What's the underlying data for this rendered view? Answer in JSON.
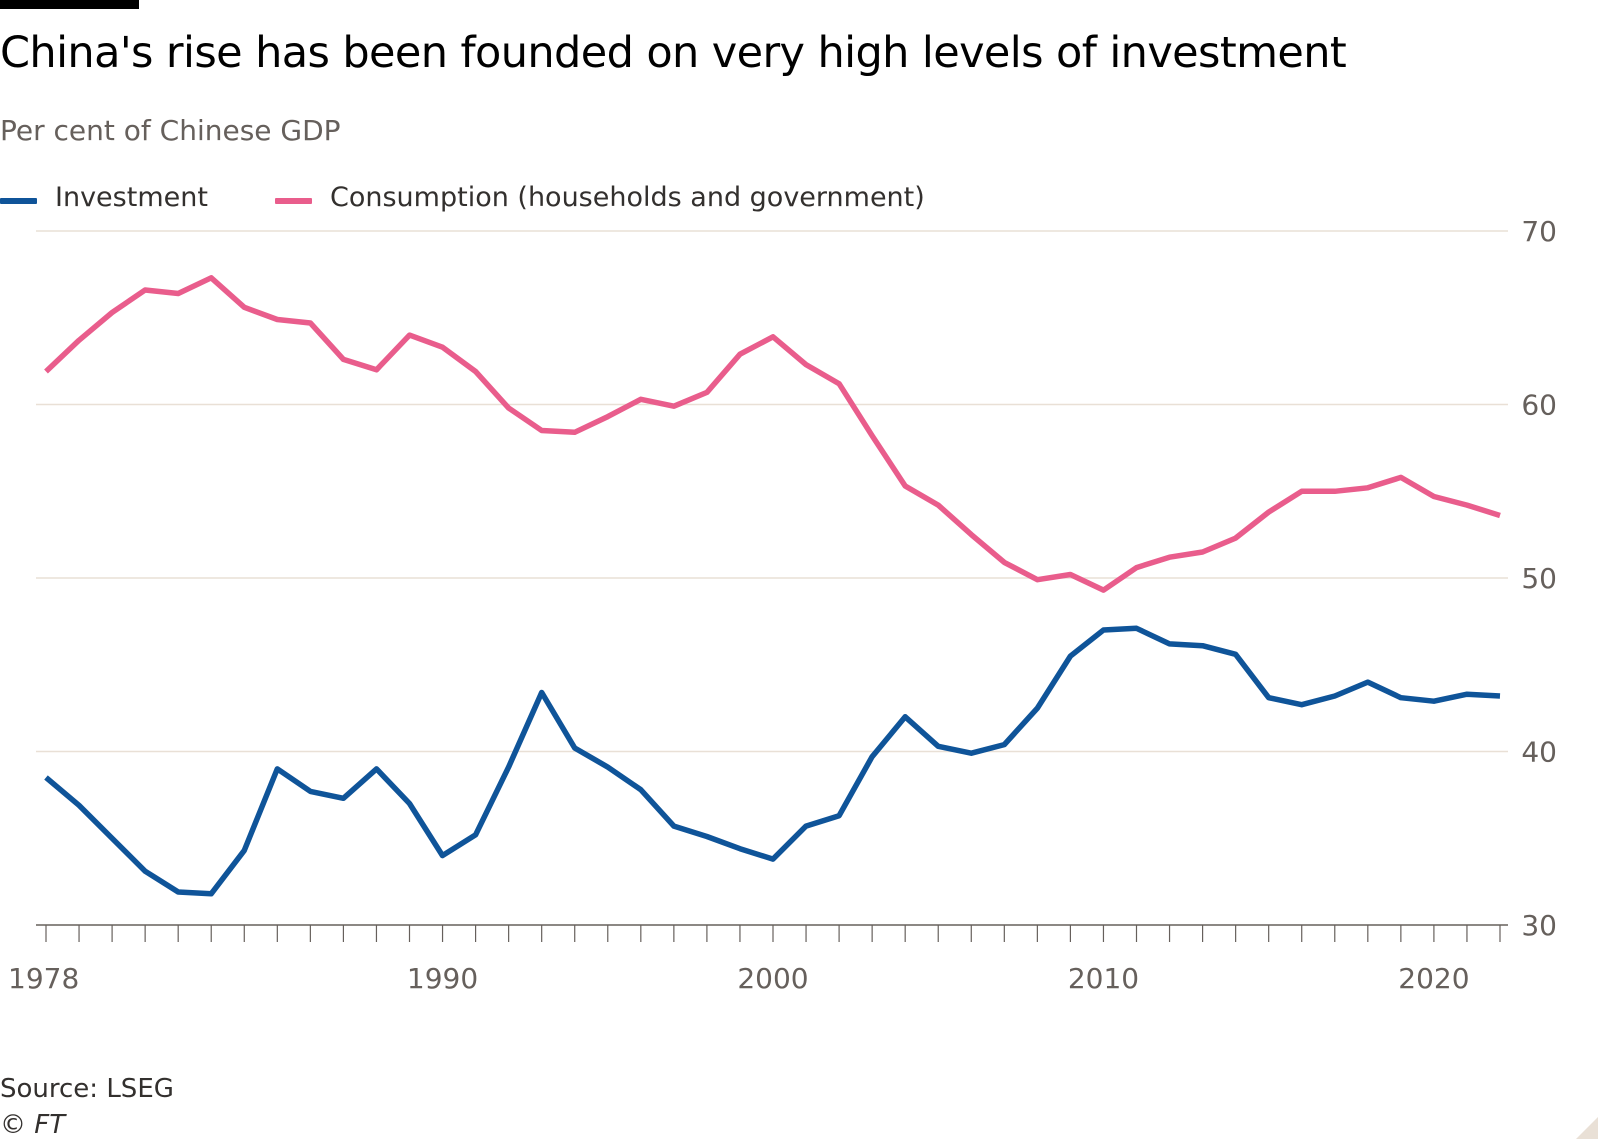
{
  "title": "China's rise has been founded on very high levels of investment",
  "subtitle": "Per cent of Chinese GDP",
  "source": "Source: LSEG",
  "credit": "© FT",
  "colors": {
    "investment": "#0f5499",
    "consumption": "#e95d8c",
    "gridline": "#e9e0d6",
    "axis": "#66605c",
    "text": "#33302e"
  },
  "chart_data": {
    "type": "line",
    "title": "China's rise has been founded on very high levels of investment",
    "subtitle": "Per cent of Chinese GDP",
    "ylabel": "",
    "xlabel": "",
    "ylim": [
      30,
      70
    ],
    "xlim": [
      1978,
      2022
    ],
    "y_axis_side": "right",
    "grid": "horizontal",
    "legend_position": "top-left",
    "y_ticks": [
      "30",
      "40",
      "50",
      "60",
      "70"
    ],
    "x_tick_labels": [
      {
        "year": 1978,
        "label": "1978"
      },
      {
        "year": 1990,
        "label": "1990"
      },
      {
        "year": 2000,
        "label": "2000"
      },
      {
        "year": 2010,
        "label": "2010"
      },
      {
        "year": 2020,
        "label": "2020"
      }
    ],
    "x": [
      1978,
      1979,
      1980,
      1981,
      1982,
      1983,
      1984,
      1985,
      1986,
      1987,
      1988,
      1989,
      1990,
      1991,
      1992,
      1993,
      1994,
      1995,
      1996,
      1997,
      1998,
      1999,
      2000,
      2001,
      2002,
      2003,
      2004,
      2005,
      2006,
      2007,
      2008,
      2009,
      2010,
      2011,
      2012,
      2013,
      2014,
      2015,
      2016,
      2017,
      2018,
      2019,
      2020,
      2021,
      2022
    ],
    "series": [
      {
        "name": "Investment",
        "color": "#0f5499",
        "values": [
          38.5,
          36.9,
          35.0,
          33.1,
          31.9,
          31.8,
          34.3,
          39.0,
          37.7,
          37.3,
          39.0,
          37.0,
          34.0,
          35.2,
          39.1,
          43.4,
          40.2,
          39.1,
          37.8,
          35.7,
          35.1,
          34.4,
          33.8,
          35.7,
          36.3,
          39.7,
          42.0,
          40.3,
          39.9,
          40.4,
          42.5,
          45.5,
          47.0,
          47.1,
          46.2,
          46.1,
          45.6,
          43.1,
          42.7,
          43.2,
          44.0,
          43.1,
          42.9,
          43.3,
          43.2
        ]
      },
      {
        "name": "Consumption (households and government)",
        "color": "#e95d8c",
        "values": [
          61.9,
          63.7,
          65.3,
          66.6,
          66.4,
          67.3,
          65.6,
          64.9,
          64.7,
          62.6,
          62.0,
          64.0,
          63.3,
          61.9,
          59.8,
          58.5,
          58.4,
          59.3,
          60.3,
          59.9,
          60.7,
          62.9,
          63.9,
          62.3,
          61.2,
          58.2,
          55.3,
          54.2,
          52.5,
          50.9,
          49.9,
          50.2,
          49.3,
          50.6,
          51.2,
          51.5,
          52.3,
          53.8,
          55.0,
          55.0,
          55.2,
          55.8,
          54.7,
          54.2,
          53.6
        ]
      }
    ]
  }
}
